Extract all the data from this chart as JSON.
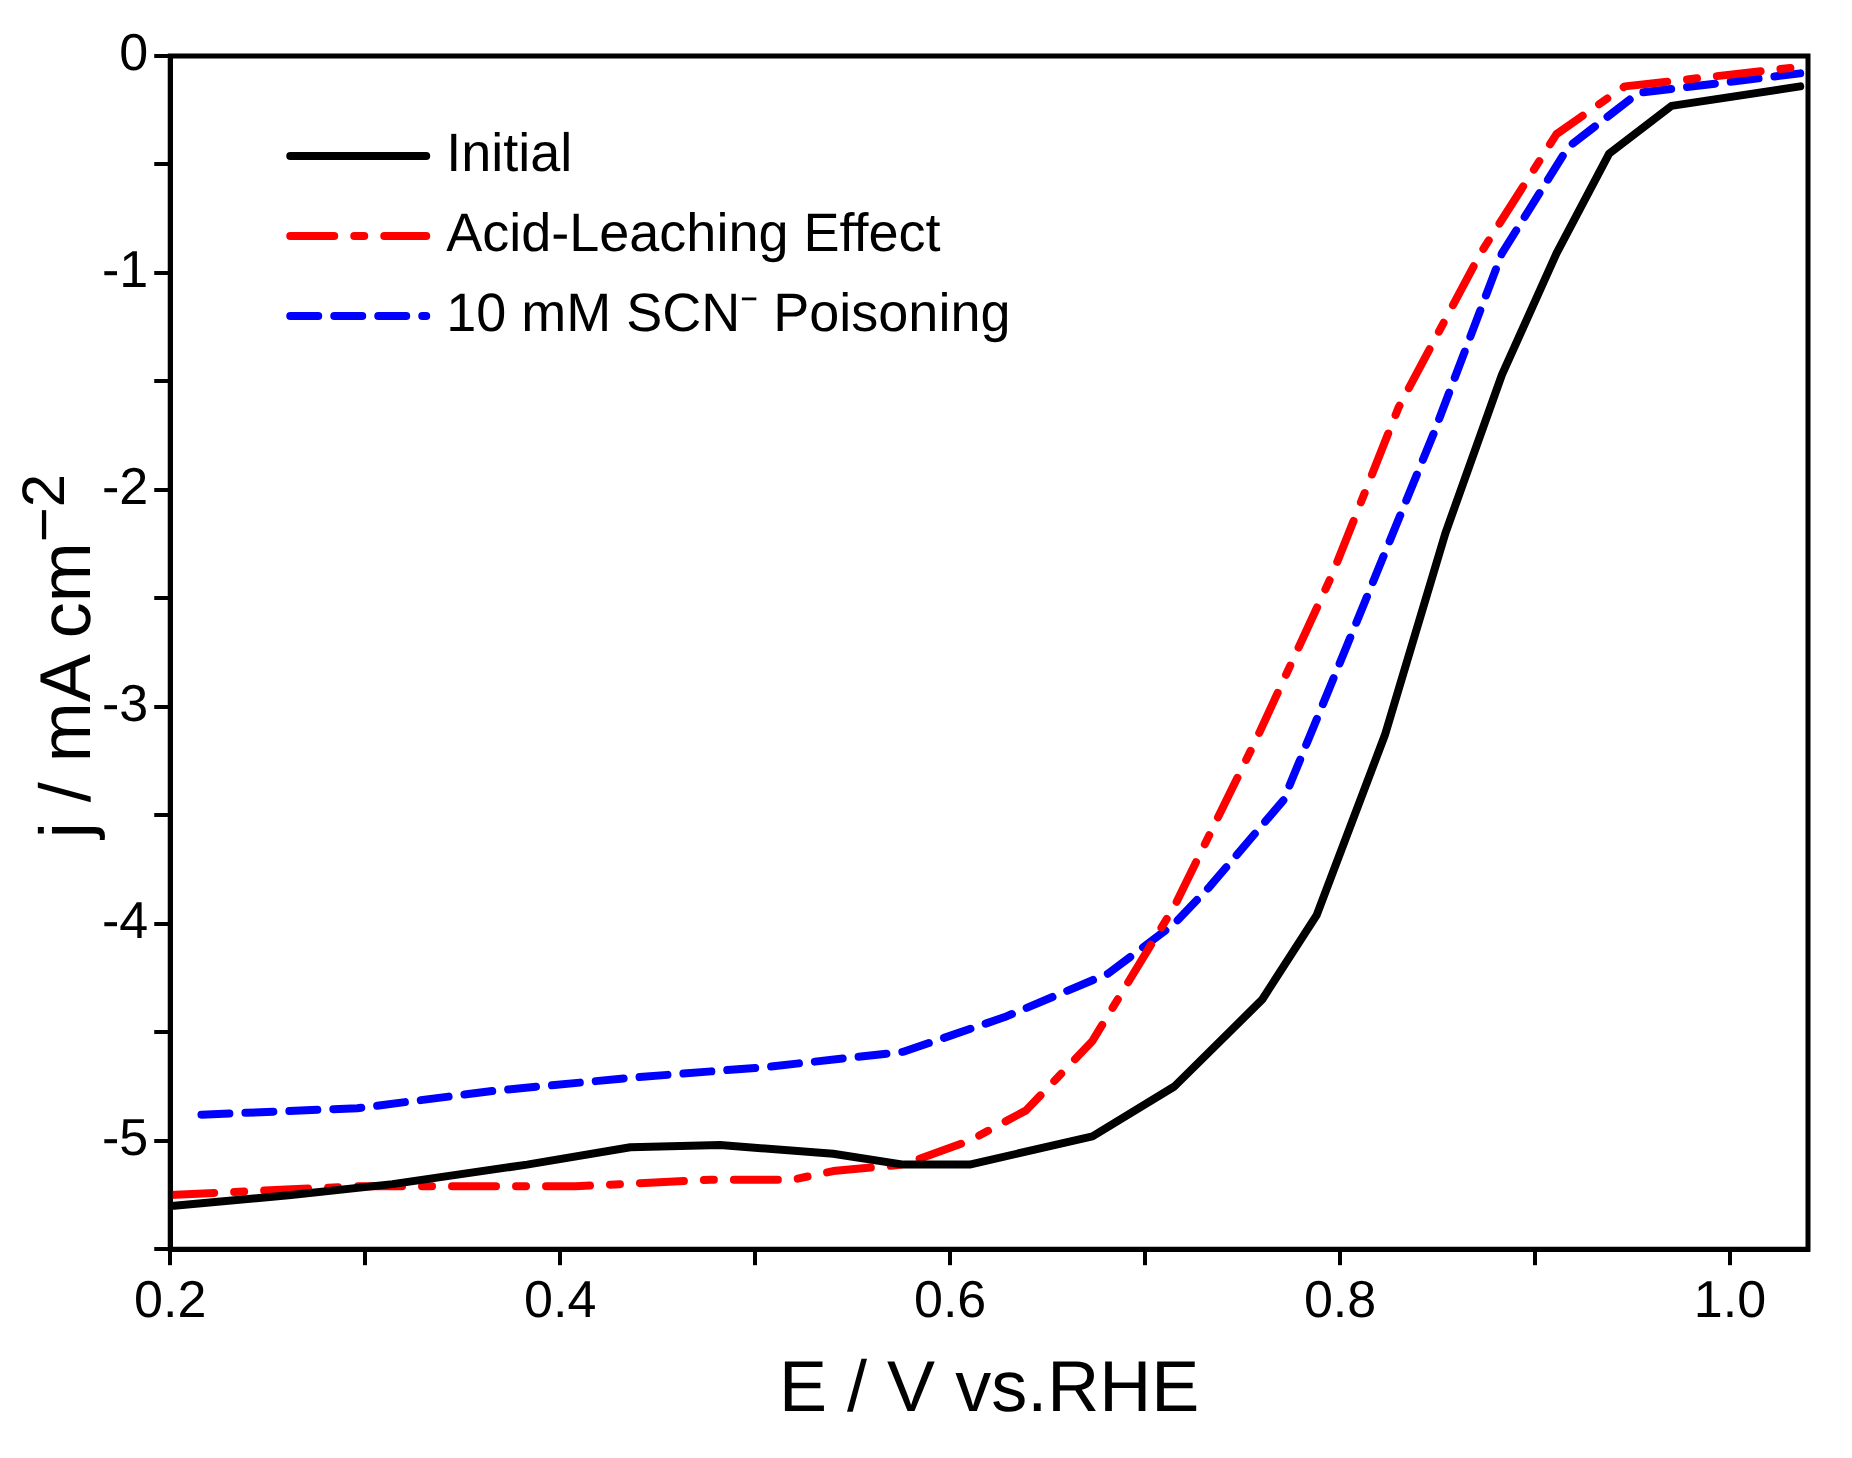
{
  "chart_data": {
    "type": "line",
    "xlabel": "E / V vs.RHE",
    "ylabel": "j / mA cm$^{−2}$",
    "xlim": [
      0.2,
      1.04
    ],
    "ylim": [
      -5.5,
      0
    ],
    "xticks": [
      {
        "value": 0.2,
        "label": "0.2"
      },
      {
        "value": 0.3,
        "label": null
      },
      {
        "value": 0.4,
        "label": "0.4"
      },
      {
        "value": 0.5,
        "label": null
      },
      {
        "value": 0.6,
        "label": "0.6"
      },
      {
        "value": 0.7,
        "label": null
      },
      {
        "value": 0.8,
        "label": "0.8"
      },
      {
        "value": 0.9,
        "label": null
      },
      {
        "value": 1.0,
        "label": "1.0"
      }
    ],
    "yticks": [
      {
        "value": -5.5,
        "label": null
      },
      -5,
      {
        "value": -4.5,
        "label": null
      },
      -4,
      {
        "value": -3.5,
        "label": null
      },
      -3,
      {
        "value": -2.5,
        "label": null
      },
      -2,
      {
        "value": -1.5,
        "label": null
      },
      -1,
      {
        "value": -0.5,
        "label": null
      },
      0
    ],
    "grid": false,
    "legend": "top left",
    "marker": "none",
    "series": [
      {
        "name": "Initial",
        "color": "#000000",
        "line_style": "solid",
        "x": [
          0.202,
          0.262,
          0.314,
          0.383,
          0.436,
          0.482,
          0.54,
          0.576,
          0.61,
          0.673,
          0.715,
          0.76,
          0.788,
          0.823,
          0.854,
          0.883,
          0.911,
          0.938,
          0.97,
          1.036
        ],
        "values": [
          -5.3,
          -5.25,
          -5.2,
          -5.11,
          -5.03,
          -5.02,
          -5.06,
          -5.11,
          -5.11,
          -4.98,
          -4.75,
          -4.35,
          -3.96,
          -3.13,
          -2.2,
          -1.47,
          -0.91,
          -0.45,
          -0.23,
          -0.14
        ]
      },
      {
        "name": "Acid-Leaching Effect",
        "color": "#ff0000",
        "line_style": "dashdot",
        "x": [
          0.2,
          0.296,
          0.349,
          0.408,
          0.477,
          0.519,
          0.54,
          0.576,
          0.61,
          0.639,
          0.673,
          0.715,
          0.757,
          0.796,
          0.83,
          0.872,
          0.911,
          0.946,
          1.036
        ],
        "values": [
          -5.25,
          -5.21,
          -5.21,
          -5.21,
          -5.18,
          -5.18,
          -5.14,
          -5.11,
          -5.0,
          -4.86,
          -4.54,
          -3.92,
          -3.15,
          -2.39,
          -1.62,
          -0.91,
          -0.36,
          -0.14,
          -0.05
        ]
      },
      {
        "name": "10 mM SCN⁻ Poisoning",
        "color": "#0000ff",
        "line_style": "dashed",
        "x": [
          0.216,
          0.296,
          0.366,
          0.436,
          0.506,
          0.576,
          0.628,
          0.681,
          0.715,
          0.733,
          0.771,
          0.813,
          0.848,
          0.883,
          0.917,
          0.953,
          1.036
        ],
        "values": [
          -4.88,
          -4.85,
          -4.77,
          -4.71,
          -4.66,
          -4.59,
          -4.43,
          -4.23,
          -4.0,
          -3.83,
          -3.43,
          -2.51,
          -1.74,
          -0.91,
          -0.42,
          -0.17,
          -0.08
        ]
      }
    ]
  }
}
